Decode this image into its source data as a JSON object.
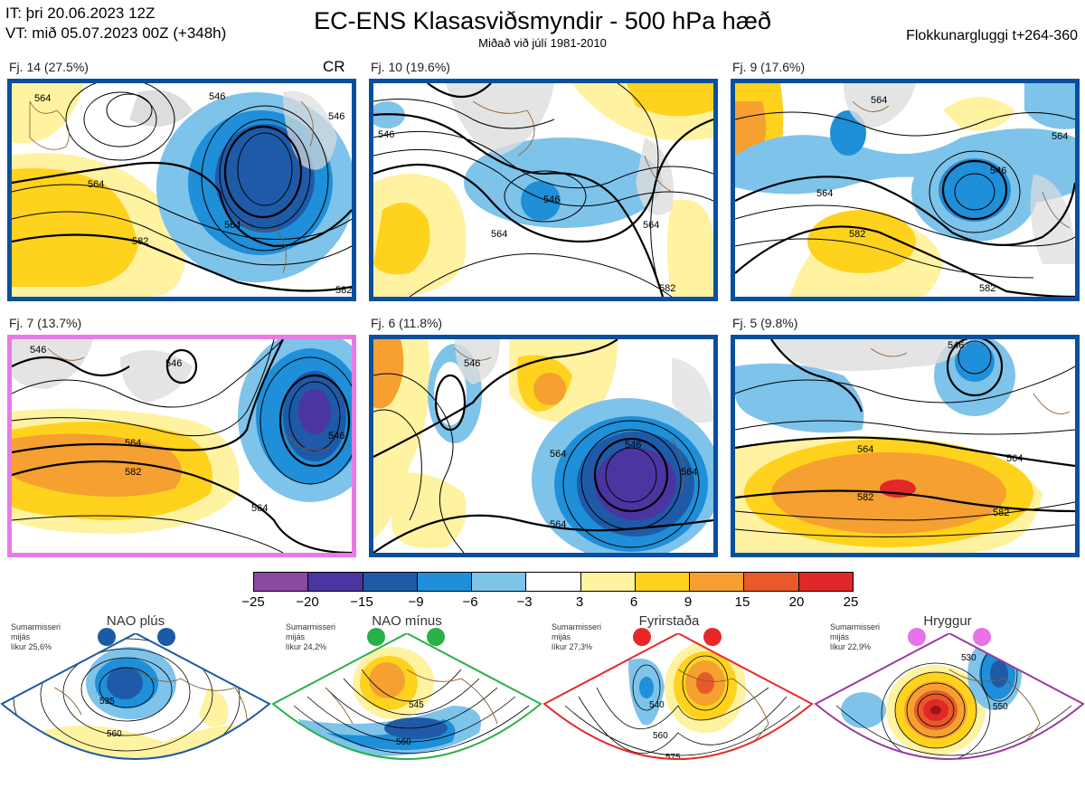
{
  "header": {
    "it_line": "IT: þri 20.06.2023 12Z",
    "vt_line": "VT: mið 05.07.2023 00Z  (+348h)",
    "title": "EC-ENS Klasasviðsmyndir - 500 hPa hæð",
    "subtitle": "Miðað við júlí 1981-2010",
    "window": "Flokkunargluggi t+264-360"
  },
  "panels": [
    {
      "label": "Fj. 14 (27.5%)",
      "extra": "CR",
      "contours": [
        "564",
        "564",
        "564",
        "582",
        "546",
        "546",
        "582"
      ]
    },
    {
      "label": "Fj. 10 (19.6%)",
      "contours": [
        "546",
        "546",
        "564",
        "564",
        "582"
      ]
    },
    {
      "label": "Fj. 9 (17.6%)",
      "contours": [
        "564",
        "564",
        "546",
        "564",
        "582",
        "582"
      ]
    },
    {
      "label": "Fj. 7 (13.7%)",
      "contours": [
        "546",
        "546",
        "564",
        "582",
        "564",
        "546"
      ]
    },
    {
      "label": "Fj. 6 (11.8%)",
      "contours": [
        "546",
        "564",
        "546",
        "564",
        "564"
      ]
    },
    {
      "label": "Fj. 5 (9.8%)",
      "contours": [
        "546",
        "564",
        "564",
        "582",
        "582"
      ]
    }
  ],
  "colorbar": {
    "ticks": [
      "−25",
      "−20",
      "−15",
      "−9",
      "−6",
      "−3",
      "3",
      "6",
      "9",
      "15",
      "20",
      "25"
    ],
    "colors": [
      "#8b4aa0",
      "#4b35a0",
      "#1e5aa8",
      "#1e8fd8",
      "#7ec3ea",
      "#ffffff",
      "#fff2a0",
      "#ffd21e",
      "#f5a030",
      "#e85a2a",
      "#e02828",
      "#a01418"
    ]
  },
  "regimes": [
    {
      "name": "NAO plús",
      "text": [
        "Sumarmisseri",
        "mijás",
        "líkur 25,6%"
      ],
      "color": "#1a5aa6",
      "contours": [
        "535",
        "560"
      ]
    },
    {
      "name": "NAO mínus",
      "text": [
        "Sumarmisseri",
        "mijás",
        "líkur 24,2%"
      ],
      "color": "#2ab048",
      "contours": [
        "545",
        "560",
        "575"
      ]
    },
    {
      "name": "Fyrirstaða",
      "text": [
        "Sumarmisseri",
        "mijás",
        "líkur 27,3%"
      ],
      "color": "#e82828",
      "contours": [
        "540",
        "560",
        "575"
      ]
    },
    {
      "name": "Hryggur",
      "text": [
        "Sumarmisseri",
        "mijás",
        "líkur 22,9%"
      ],
      "color": "#e870e8",
      "contours": [
        "530",
        "550",
        "575"
      ]
    }
  ],
  "frame_colors": {
    "default": "#0a4f9e",
    "highlight": "#e87ae8"
  }
}
